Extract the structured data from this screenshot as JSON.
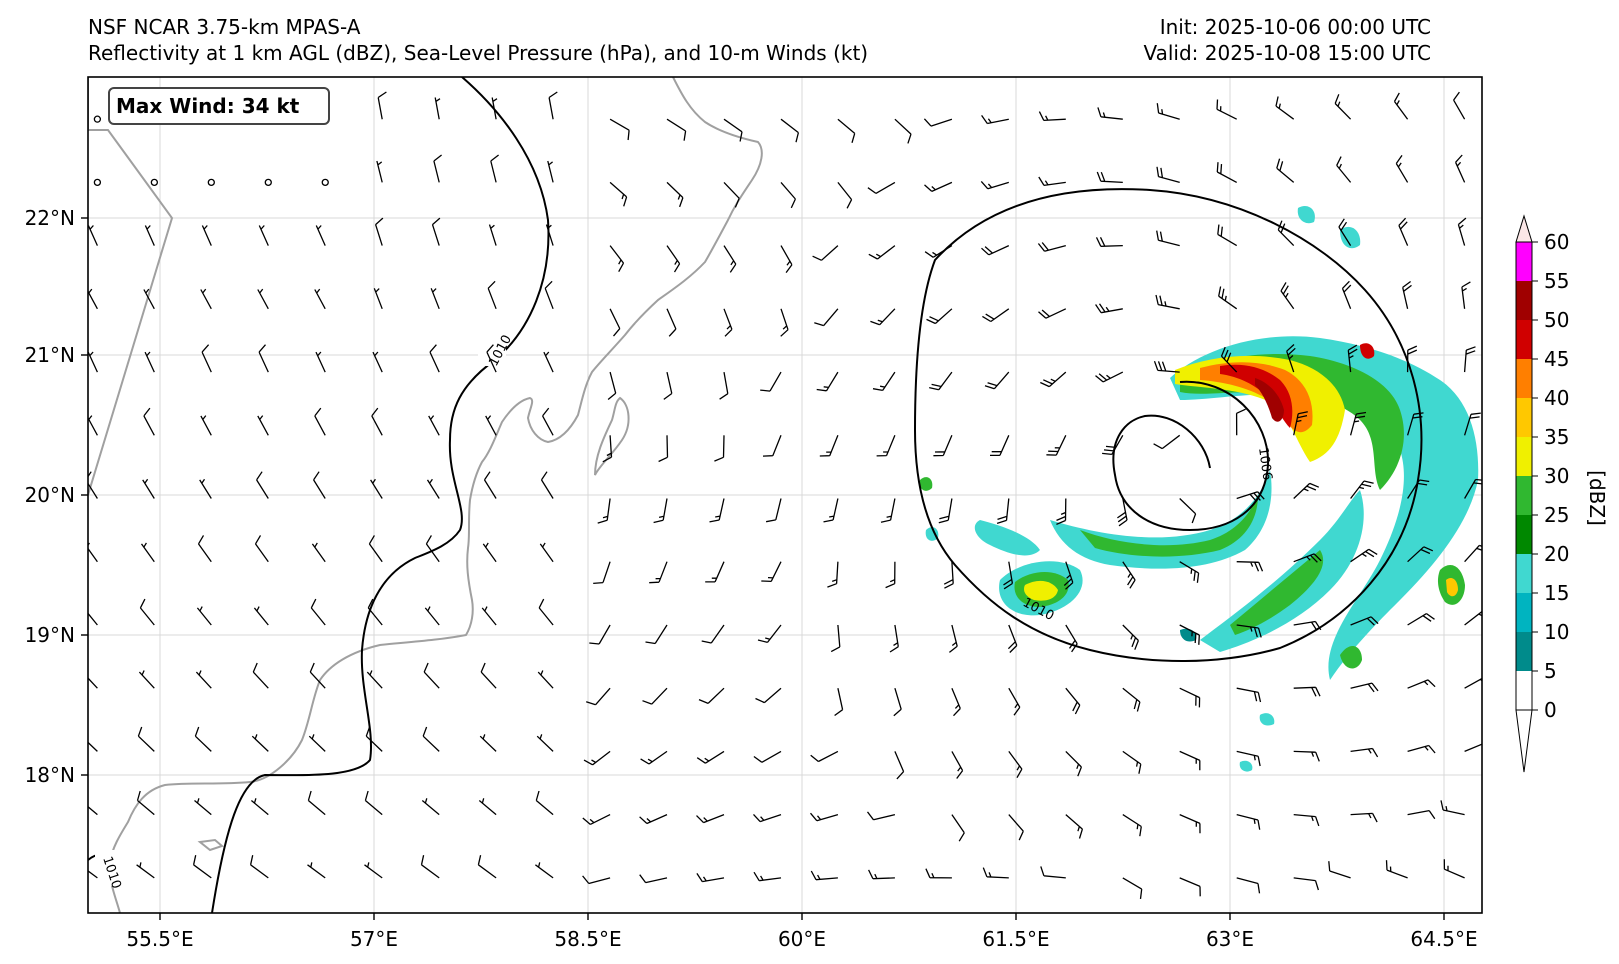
{
  "header": {
    "title": "NSF NCAR 3.75-km MPAS-A",
    "subtitle": "Reflectivity at 1 km AGL (dBZ), Sea-Level Pressure (hPa), and 10-m Winds (kt)",
    "init": "Init: 2025-10-06 00:00 UTC",
    "valid": "Valid: 2025-10-08 15:00 UTC"
  },
  "annotation": {
    "max_wind": "Max Wind: 34 kt"
  },
  "map": {
    "lon_range": [
      54.7,
      65.1
    ],
    "lat_range": [
      17.05,
      23.0
    ],
    "lon_ticks": [
      "55.5°E",
      "57°E",
      "58.5°E",
      "60°E",
      "61.5°E",
      "63°E",
      "64.5°E"
    ],
    "lat_ticks": [
      "18°N",
      "19°N",
      "20°N",
      "21°N",
      "22°N"
    ],
    "coastline_color": "#a0a0a0",
    "grid": true
  },
  "isobars": {
    "color": "#000000",
    "labels": [
      "1010",
      "1010",
      "1006",
      "1010"
    ]
  },
  "colorbar": {
    "label": "[dBZ]",
    "levels": [
      "0",
      "5",
      "10",
      "15",
      "20",
      "25",
      "30",
      "35",
      "40",
      "45",
      "50",
      "55",
      "60"
    ],
    "colors": [
      "#ffffff",
      "#008b8b",
      "#00b4c0",
      "#40d8d0",
      "#008800",
      "#30b830",
      "#f0f000",
      "#ffc800",
      "#ff7f00",
      "#d00000",
      "#a00000",
      "#ff00ff",
      "#fbe7e7"
    ]
  },
  "winds": {
    "barb_color": "#000000",
    "cyclone_center": {
      "lon": 63.0,
      "lat": 20.35
    }
  }
}
